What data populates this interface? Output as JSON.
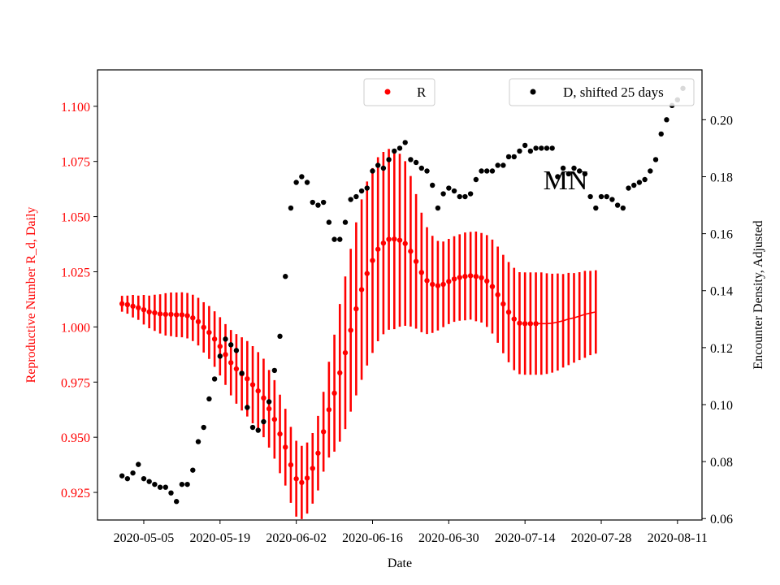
{
  "chart_data": {
    "type": "scatter",
    "title": "",
    "annotation": "MN",
    "xlabel": "Date",
    "ylabel_left": "Reproductive Number R_d, Daily",
    "ylabel_right": "Encounter Density, Adjusted",
    "x_start": "2020-05-01",
    "x_tick_labels": [
      "2020-05-05",
      "2020-05-19",
      "2020-06-02",
      "2020-06-16",
      "2020-06-30",
      "2020-07-14",
      "2020-07-28",
      "2020-08-11"
    ],
    "x_tick_days": [
      4,
      18,
      32,
      46,
      60,
      74,
      88,
      102
    ],
    "xlim_days": [
      -4.5,
      106.5
    ],
    "yleft_lim": [
      0.9125,
      1.1165
    ],
    "yleft_ticks": [
      0.925,
      0.95,
      0.975,
      1.0,
      1.025,
      1.05,
      1.075,
      1.1
    ],
    "yleft_tick_labels": [
      "0.925",
      "0.950",
      "0.975",
      "1.000",
      "1.025",
      "1.050",
      "1.075",
      "1.100"
    ],
    "yright_lim": [
      0.0595,
      0.2175
    ],
    "yright_ticks": [
      0.06,
      0.08,
      0.1,
      0.12,
      0.14,
      0.16,
      0.18,
      0.2
    ],
    "yright_tick_labels": [
      "0.06",
      "0.08",
      "0.10",
      "0.12",
      "0.14",
      "0.16",
      "0.18",
      "0.20"
    ],
    "colors": {
      "R": "#ff0000",
      "D": "#000000"
    },
    "legend_R": "R",
    "legend_D": "D, shifted 25 days",
    "series_R": {
      "name": "R",
      "start_day": 0,
      "values": [
        1.0105,
        1.0101,
        1.0094,
        1.0087,
        1.0078,
        1.0068,
        1.0064,
        1.0059,
        1.0057,
        1.0057,
        1.0055,
        1.0055,
        1.0051,
        1.0041,
        1.0024,
        0.9998,
        0.9975,
        0.9945,
        0.9912,
        0.9875,
        0.9838,
        0.981,
        0.9787,
        0.9765,
        0.9738,
        0.971,
        0.9678,
        0.9629,
        0.9581,
        0.9515,
        0.9455,
        0.9375,
        0.9312,
        0.9295,
        0.9315,
        0.9359,
        0.9428,
        0.9525,
        0.9625,
        0.97,
        0.9792,
        0.9883,
        0.9985,
        1.0082,
        1.0169,
        1.0242,
        1.0301,
        1.0352,
        1.038,
        1.0397,
        1.0398,
        1.0393,
        1.0378,
        1.0343,
        1.0297,
        1.0247,
        1.021,
        1.0193,
        1.0187,
        1.0193,
        1.0206,
        1.0217,
        1.0224,
        1.0229,
        1.0232,
        1.0229,
        1.0223,
        1.0208,
        1.0183,
        1.0146,
        1.0104,
        1.0067,
        1.0036,
        1.0017,
        1.0015,
        1.0015,
        1.0015,
        1.0015,
        1.0015,
        1.0017,
        1.0022,
        1.0028,
        1.0036,
        1.0041,
        1.0049,
        1.0057,
        1.0063,
        1.0068
      ],
      "error_halfwidth": [
        0.0036,
        0.0041,
        0.0051,
        0.0055,
        0.0067,
        0.0074,
        0.0082,
        0.0089,
        0.0096,
        0.0099,
        0.0101,
        0.0102,
        0.0103,
        0.0105,
        0.0108,
        0.0114,
        0.012,
        0.0126,
        0.0132,
        0.0138,
        0.0148,
        0.0158,
        0.0166,
        0.0171,
        0.0175,
        0.0176,
        0.0178,
        0.0176,
        0.0178,
        0.0178,
        0.0174,
        0.0172,
        0.0172,
        0.0166,
        0.0161,
        0.016,
        0.0169,
        0.0181,
        0.0217,
        0.0265,
        0.0312,
        0.0346,
        0.0369,
        0.0392,
        0.0409,
        0.0417,
        0.0419,
        0.0417,
        0.0413,
        0.041,
        0.0408,
        0.0392,
        0.0373,
        0.0341,
        0.0305,
        0.0271,
        0.0242,
        0.022,
        0.0203,
        0.0194,
        0.0193,
        0.0194,
        0.0196,
        0.0199,
        0.0199,
        0.0203,
        0.0203,
        0.0208,
        0.0213,
        0.0218,
        0.0223,
        0.0227,
        0.0232,
        0.0231,
        0.0232,
        0.0232,
        0.0232,
        0.0232,
        0.0228,
        0.0224,
        0.022,
        0.0212,
        0.0209,
        0.0203,
        0.0199,
        0.0197,
        0.0191,
        0.0189
      ],
      "points_marked": 77
    },
    "series_D": {
      "name": "D, shifted 25 days",
      "start_day": 0,
      "values": [
        0.075,
        0.074,
        0.076,
        0.079,
        0.074,
        0.073,
        0.072,
        0.071,
        0.071,
        0.069,
        0.066,
        0.072,
        0.072,
        0.077,
        0.087,
        0.092,
        0.102,
        0.109,
        0.117,
        0.123,
        0.121,
        0.119,
        0.111,
        0.099,
        0.092,
        0.091,
        0.094,
        0.101,
        0.112,
        0.124,
        0.145,
        0.169,
        0.178,
        0.18,
        0.178,
        0.171,
        0.17,
        0.171,
        0.164,
        0.158,
        0.158,
        0.164,
        0.172,
        0.173,
        0.175,
        0.176,
        0.182,
        0.184,
        0.183,
        0.186,
        0.189,
        0.19,
        0.192,
        0.186,
        0.185,
        0.183,
        0.182,
        0.177,
        0.169,
        0.174,
        0.176,
        0.175,
        0.173,
        0.173,
        0.174,
        0.179,
        0.182,
        0.182,
        0.182,
        0.184,
        0.184,
        0.187,
        0.187,
        0.189,
        0.191,
        0.189,
        0.19,
        0.19,
        0.19,
        0.19,
        0.18,
        0.183,
        0.181,
        0.183,
        0.182,
        0.181,
        0.173,
        0.169,
        0.173,
        0.173,
        0.172,
        0.17,
        0.169,
        0.176,
        0.177,
        0.178,
        0.179,
        0.182,
        0.186,
        0.195,
        0.2,
        0.205,
        0.207,
        0.211
      ]
    }
  }
}
